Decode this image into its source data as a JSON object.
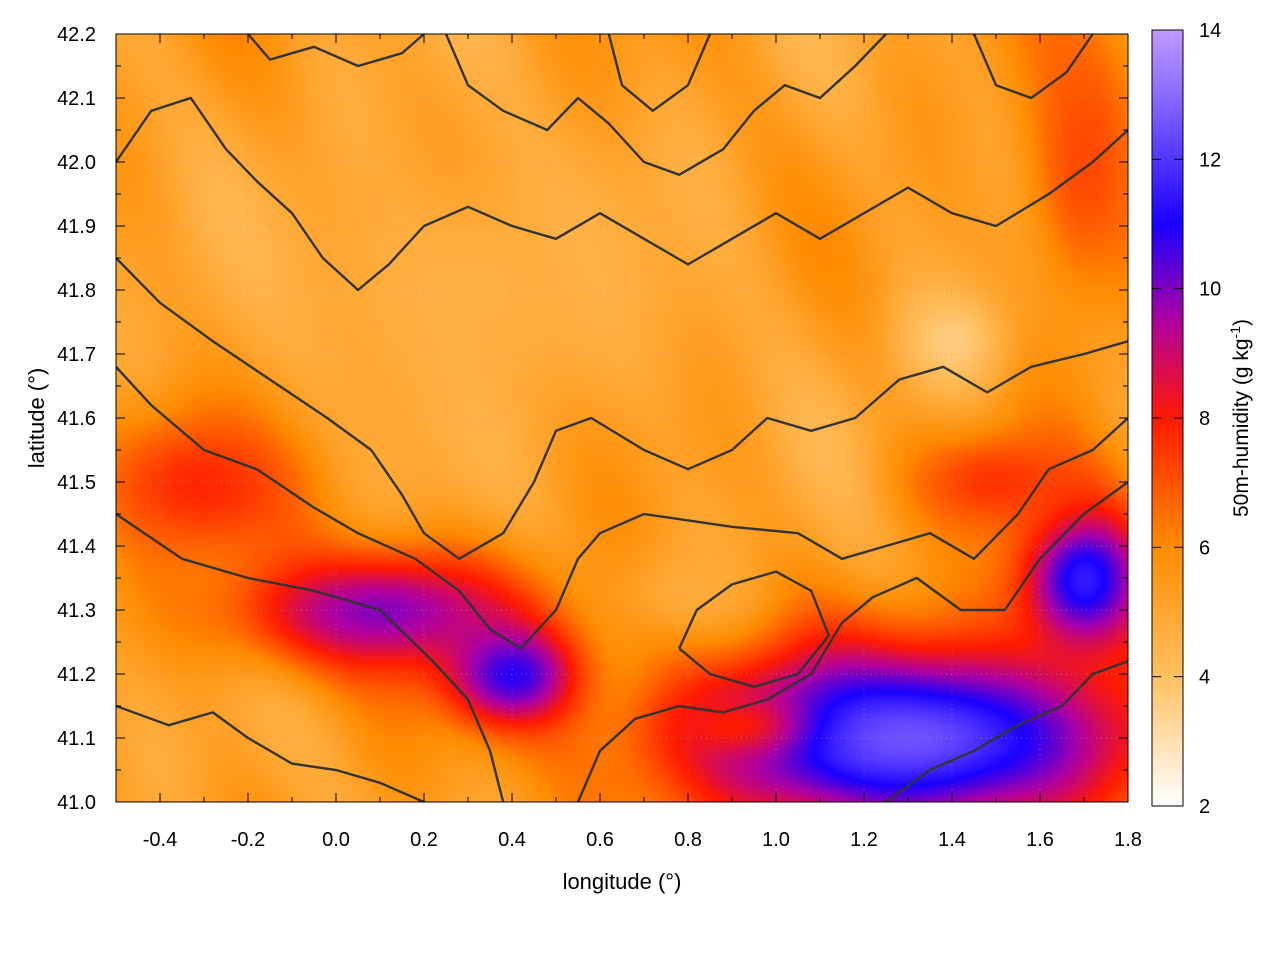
{
  "chart_data": {
    "type": "heatmap",
    "xlabel": "longitude (°)",
    "ylabel": "latitude (°)",
    "colorbar_label": "50m-humidity (g kg",
    "colorbar_label_sup": "-1",
    "colorbar_label_end": ")",
    "xlim": [
      -0.5,
      1.8
    ],
    "ylim": [
      41.0,
      42.2
    ],
    "xticks": [
      -0.4,
      -0.2,
      0.0,
      0.2,
      0.4,
      0.6,
      0.8,
      1.0,
      1.2,
      1.4,
      1.6,
      1.8
    ],
    "xtick_labels": [
      "-0.4",
      "-0.2",
      "0.0",
      "0.2",
      "0.4",
      "0.6",
      "0.8",
      "1.0",
      "1.2",
      "1.4",
      "1.6",
      "1.8"
    ],
    "yticks": [
      41.0,
      41.1,
      41.2,
      41.3,
      41.4,
      41.5,
      41.6,
      41.7,
      41.8,
      41.9,
      42.0,
      42.1,
      42.2
    ],
    "ytick_labels": [
      "41.0",
      "41.1",
      "41.2",
      "41.3",
      "41.4",
      "41.5",
      "41.6",
      "41.7",
      "41.8",
      "41.9",
      "42.0",
      "42.1",
      "42.2"
    ],
    "clim": [
      2,
      14
    ],
    "cticks": [
      2,
      4,
      6,
      8,
      10,
      12,
      14
    ],
    "ctick_labels": [
      "2",
      "4",
      "6",
      "8",
      "10",
      "12",
      "14"
    ],
    "colormap": [
      {
        "v": 2,
        "color": "#ffffff"
      },
      {
        "v": 4,
        "color": "#ffc060"
      },
      {
        "v": 6,
        "color": "#ff8c00"
      },
      {
        "v": 8,
        "color": "#ff1a00"
      },
      {
        "v": 9.5,
        "color": "#b000a0"
      },
      {
        "v": 11,
        "color": "#1a00ff"
      },
      {
        "v": 13,
        "color": "#8a6cff"
      },
      {
        "v": 14,
        "color": "#c09aff"
      }
    ],
    "grid": true,
    "humidity_features": [
      {
        "lon": 0.1,
        "lat": 41.3,
        "value": 10.0,
        "spread_lon": 0.35,
        "spread_lat": 0.1
      },
      {
        "lon": -0.3,
        "lat": 41.5,
        "value": 8.0,
        "spread_lon": 0.25,
        "spread_lat": 0.12
      },
      {
        "lon": 0.4,
        "lat": 41.2,
        "value": 10.8,
        "spread_lon": 0.15,
        "spread_lat": 0.08
      },
      {
        "lon": 1.3,
        "lat": 41.1,
        "value": 12.5,
        "spread_lon": 0.55,
        "spread_lat": 0.15
      },
      {
        "lon": 1.7,
        "lat": 41.35,
        "value": 11.5,
        "spread_lon": 0.15,
        "spread_lat": 0.12
      },
      {
        "lon": 0.9,
        "lat": 41.12,
        "value": 8.0,
        "spread_lon": 0.15,
        "spread_lat": 0.05
      },
      {
        "lon": 1.5,
        "lat": 41.5,
        "value": 7.6,
        "spread_lon": 0.2,
        "spread_lat": 0.08
      },
      {
        "lon": 1.7,
        "lat": 42.0,
        "value": 7.2,
        "spread_lon": 0.15,
        "spread_lat": 0.25
      },
      {
        "lon": 1.4,
        "lat": 41.72,
        "value": 3.6,
        "spread_lon": 0.12,
        "spread_lat": 0.08
      },
      {
        "lon": 0.3,
        "lat": 41.8,
        "value": 4.6,
        "spread_lon": 0.5,
        "spread_lat": 0.25
      },
      {
        "lon": 0.8,
        "lat": 41.33,
        "value": 4.8,
        "spread_lon": 0.15,
        "spread_lat": 0.07
      }
    ],
    "contours": [
      [
        [
          -0.5,
          41.68
        ],
        [
          -0.42,
          41.62
        ],
        [
          -0.3,
          41.55
        ],
        [
          -0.18,
          41.52
        ],
        [
          -0.05,
          41.46
        ],
        [
          0.05,
          41.42
        ],
        [
          0.18,
          41.38
        ],
        [
          0.28,
          41.33
        ],
        [
          0.35,
          41.27
        ],
        [
          0.42,
          41.24
        ],
        [
          0.5,
          41.3
        ],
        [
          0.55,
          41.38
        ],
        [
          0.6,
          41.42
        ],
        [
          0.7,
          41.45
        ],
        [
          0.9,
          41.43
        ],
        [
          1.05,
          41.42
        ],
        [
          1.15,
          41.38
        ],
        [
          1.25,
          41.4
        ],
        [
          1.35,
          41.42
        ],
        [
          1.45,
          41.38
        ],
        [
          1.55,
          41.45
        ],
        [
          1.62,
          41.52
        ],
        [
          1.72,
          41.55
        ],
        [
          1.8,
          41.6
        ]
      ],
      [
        [
          -0.5,
          41.45
        ],
        [
          -0.35,
          41.38
        ],
        [
          -0.2,
          41.35
        ],
        [
          -0.05,
          41.33
        ],
        [
          0.1,
          41.3
        ],
        [
          0.22,
          41.22
        ],
        [
          0.3,
          41.16
        ],
        [
          0.35,
          41.08
        ],
        [
          0.38,
          41.0
        ]
      ],
      [
        [
          -0.5,
          41.85
        ],
        [
          -0.4,
          41.78
        ],
        [
          -0.28,
          41.72
        ],
        [
          -0.15,
          41.66
        ],
        [
          -0.02,
          41.6
        ],
        [
          0.08,
          41.55
        ],
        [
          0.15,
          41.48
        ],
        [
          0.2,
          41.42
        ],
        [
          0.28,
          41.38
        ],
        [
          0.38,
          41.42
        ],
        [
          0.45,
          41.5
        ],
        [
          0.5,
          41.58
        ],
        [
          0.58,
          41.6
        ],
        [
          0.7,
          41.55
        ],
        [
          0.8,
          41.52
        ],
        [
          0.9,
          41.55
        ],
        [
          0.98,
          41.6
        ],
        [
          1.08,
          41.58
        ],
        [
          1.18,
          41.6
        ],
        [
          1.28,
          41.66
        ],
        [
          1.38,
          41.68
        ],
        [
          1.48,
          41.64
        ],
        [
          1.58,
          41.68
        ],
        [
          1.7,
          41.7
        ],
        [
          1.8,
          41.72
        ]
      ],
      [
        [
          -0.5,
          42.0
        ],
        [
          -0.42,
          42.08
        ],
        [
          -0.33,
          42.1
        ],
        [
          -0.25,
          42.02
        ],
        [
          -0.18,
          41.97
        ],
        [
          -0.1,
          41.92
        ],
        [
          -0.03,
          41.85
        ],
        [
          0.05,
          41.8
        ],
        [
          0.12,
          41.84
        ],
        [
          0.2,
          41.9
        ],
        [
          0.3,
          41.93
        ],
        [
          0.4,
          41.9
        ],
        [
          0.5,
          41.88
        ],
        [
          0.6,
          41.92
        ],
        [
          0.7,
          41.88
        ],
        [
          0.8,
          41.84
        ],
        [
          0.9,
          41.88
        ],
        [
          1.0,
          41.92
        ],
        [
          1.1,
          41.88
        ],
        [
          1.2,
          41.92
        ],
        [
          1.3,
          41.96
        ],
        [
          1.4,
          41.92
        ],
        [
          1.5,
          41.9
        ],
        [
          1.62,
          41.95
        ],
        [
          1.72,
          42.0
        ],
        [
          1.8,
          42.05
        ]
      ],
      [
        [
          0.25,
          42.2
        ],
        [
          0.3,
          42.12
        ],
        [
          0.38,
          42.08
        ],
        [
          0.48,
          42.05
        ],
        [
          0.55,
          42.1
        ],
        [
          0.62,
          42.06
        ],
        [
          0.7,
          42.0
        ],
        [
          0.78,
          41.98
        ],
        [
          0.88,
          42.02
        ],
        [
          0.95,
          42.08
        ],
        [
          1.02,
          42.12
        ],
        [
          1.1,
          42.1
        ],
        [
          1.18,
          42.15
        ],
        [
          1.25,
          42.2
        ]
      ],
      [
        [
          0.78,
          41.24
        ],
        [
          0.82,
          41.3
        ],
        [
          0.9,
          41.34
        ],
        [
          1.0,
          41.36
        ],
        [
          1.08,
          41.33
        ],
        [
          1.12,
          41.26
        ],
        [
          1.05,
          41.2
        ],
        [
          0.95,
          41.18
        ],
        [
          0.85,
          41.2
        ],
        [
          0.78,
          41.24
        ]
      ],
      [
        [
          0.55,
          41.0
        ],
        [
          0.6,
          41.08
        ],
        [
          0.68,
          41.13
        ],
        [
          0.78,
          41.15
        ],
        [
          0.88,
          41.14
        ],
        [
          0.98,
          41.16
        ],
        [
          1.08,
          41.2
        ],
        [
          1.15,
          41.28
        ],
        [
          1.22,
          41.32
        ],
        [
          1.32,
          41.35
        ],
        [
          1.42,
          41.3
        ],
        [
          1.52,
          41.3
        ],
        [
          1.6,
          41.38
        ],
        [
          1.7,
          41.45
        ],
        [
          1.8,
          41.5
        ]
      ],
      [
        [
          1.25,
          41.0
        ],
        [
          1.35,
          41.05
        ],
        [
          1.45,
          41.08
        ],
        [
          1.55,
          41.12
        ],
        [
          1.65,
          41.15
        ],
        [
          1.72,
          41.2
        ],
        [
          1.8,
          41.22
        ]
      ],
      [
        [
          -0.5,
          41.15
        ],
        [
          -0.38,
          41.12
        ],
        [
          -0.28,
          41.14
        ],
        [
          -0.2,
          41.1
        ],
        [
          -0.1,
          41.06
        ],
        [
          0.0,
          41.05
        ],
        [
          0.1,
          41.03
        ],
        [
          0.2,
          41.0
        ]
      ],
      [
        [
          -0.2,
          42.2
        ],
        [
          -0.15,
          42.16
        ],
        [
          -0.05,
          42.18
        ],
        [
          0.05,
          42.15
        ],
        [
          0.15,
          42.17
        ],
        [
          0.2,
          42.2
        ]
      ],
      [
        [
          0.62,
          42.2
        ],
        [
          0.65,
          42.12
        ],
        [
          0.72,
          42.08
        ],
        [
          0.8,
          42.12
        ],
        [
          0.85,
          42.2
        ]
      ],
      [
        [
          1.45,
          42.2
        ],
        [
          1.5,
          42.12
        ],
        [
          1.58,
          42.1
        ],
        [
          1.66,
          42.14
        ],
        [
          1.72,
          42.2
        ]
      ]
    ]
  }
}
